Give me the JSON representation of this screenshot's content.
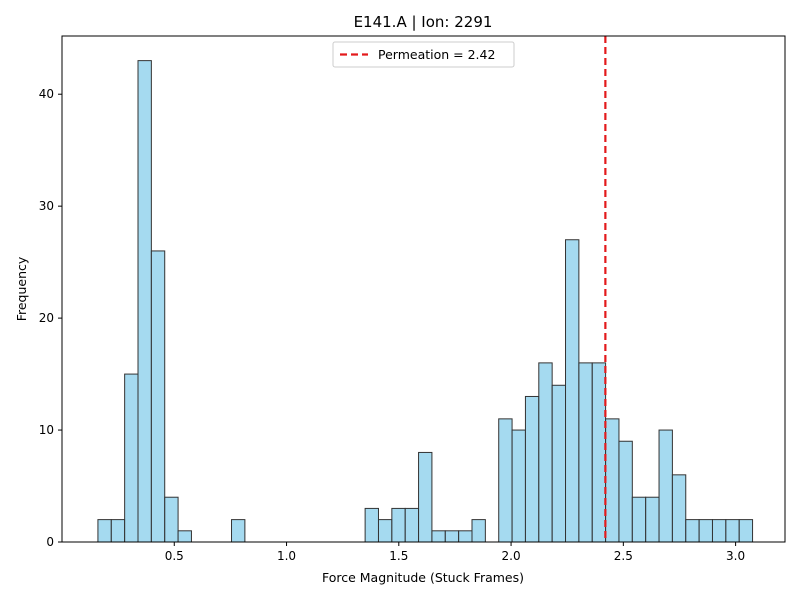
{
  "chart_data": {
    "type": "bar",
    "title": "E141.A | Ion: 2291",
    "xlabel": "Force Magnitude (Stuck Frames)",
    "ylabel": "Frequency",
    "xlim": [
      0.0,
      3.22
    ],
    "ylim": [
      0,
      45.2
    ],
    "xticks": [
      0.5,
      1.0,
      1.5,
      2.0,
      2.5,
      3.0
    ],
    "xtick_labels": [
      "0.5",
      "1.0",
      "1.5",
      "2.0",
      "2.5",
      "3.0"
    ],
    "yticks": [
      0,
      10,
      20,
      30,
      40
    ],
    "ytick_labels": [
      "0",
      "10",
      "20",
      "30",
      "40"
    ],
    "grid": false,
    "legend_position": "top-center",
    "bar_color": "#87ceeb",
    "bar_edge_color": "#333333",
    "bin_width": 0.0595,
    "bin_start": 0.16,
    "counts": [
      2,
      2,
      15,
      43,
      26,
      4,
      1,
      0,
      0,
      0,
      2,
      0,
      0,
      0,
      0,
      0,
      0,
      0,
      0,
      0,
      3,
      2,
      3,
      3,
      8,
      1,
      1,
      1,
      2,
      0,
      11,
      10,
      13,
      16,
      14,
      27,
      16,
      16,
      11,
      9,
      4,
      4,
      10,
      6,
      2,
      2,
      2,
      2,
      2
    ],
    "reference_line": {
      "x": 2.42,
      "label": "Permeation = 2.42",
      "color": "#e31a1c",
      "style": "dashed"
    }
  }
}
